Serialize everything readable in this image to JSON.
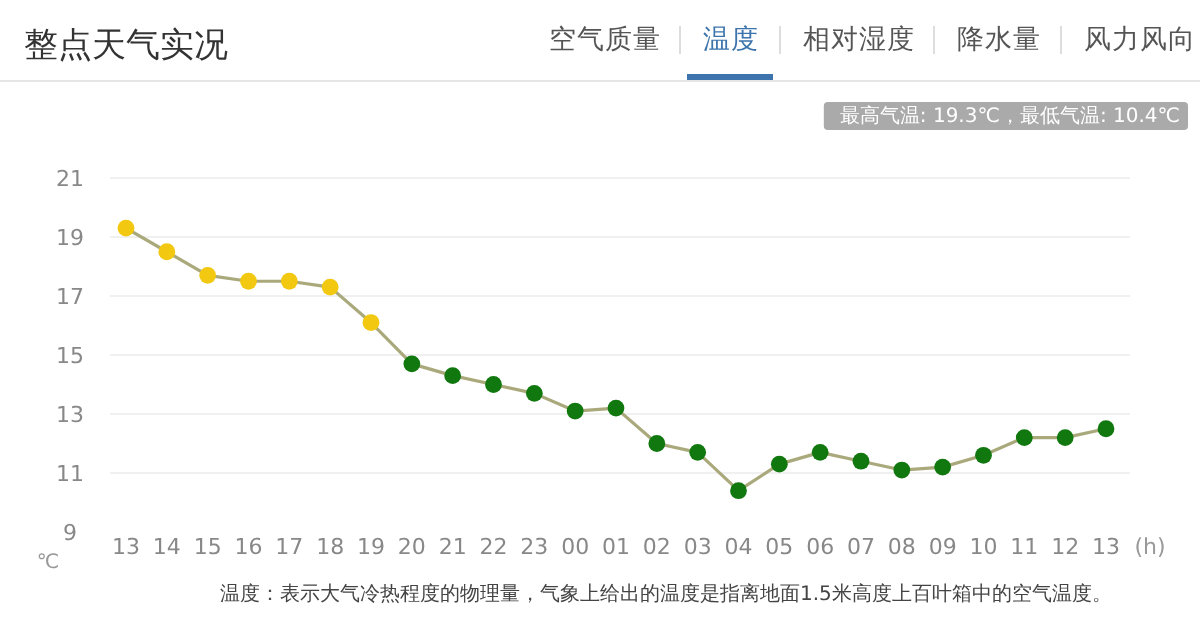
{
  "chart_data": {
    "type": "line",
    "title": "整点天气实况",
    "annotations": [
      "空气质量",
      "温度",
      "相对湿度",
      "降水量",
      "风力风向",
      "最高气温: 19.3℃，最低气温: 10.4℃",
      "温度：表示大气冷热程度的物理量，气象上给出的温度是指离地面1.5米高度上百叶箱中的空气温度。"
    ],
    "xlabel": "(h)",
    "ylabel": "℃",
    "categories": [
      "13",
      "14",
      "15",
      "16",
      "17",
      "18",
      "19",
      "20",
      "21",
      "22",
      "23",
      "00",
      "01",
      "02",
      "03",
      "04",
      "05",
      "06",
      "07",
      "08",
      "09",
      "10",
      "11",
      "12",
      "13"
    ],
    "series": [
      {
        "color": "#a9a97c",
        "values": [
          19.3,
          18.5,
          17.7,
          17.5,
          17.5,
          17.3,
          16.1,
          14.7,
          14.3,
          14.0,
          13.7,
          13.1,
          13.2,
          12.0,
          11.7,
          10.4,
          11.3,
          11.7,
          11.4,
          11.1,
          11.2,
          11.6,
          12.2,
          12.2,
          12.5
        ],
        "colors": [
          "#f2c811",
          "#f2c811",
          "#f2c811",
          "#f2c811",
          "#f2c811",
          "#f2c811",
          "#f2c811",
          "#11780f",
          "#11780f",
          "#11780f",
          "#11780f",
          "#11780f",
          "#11780f",
          "#11780f",
          "#11780f",
          "#11780f",
          "#11780f",
          "#11780f",
          "#11780f",
          "#11780f",
          "#11780f",
          "#11780f",
          "#11780f",
          "#11780f",
          "#11780f"
        ]
      }
    ],
    "ylim": [
      9,
      21
    ],
    "yticks": [
      9,
      11,
      13,
      15,
      17,
      19,
      21
    ],
    "grid": "y",
    "marker": "circle",
    "line_style": "solid"
  }
}
